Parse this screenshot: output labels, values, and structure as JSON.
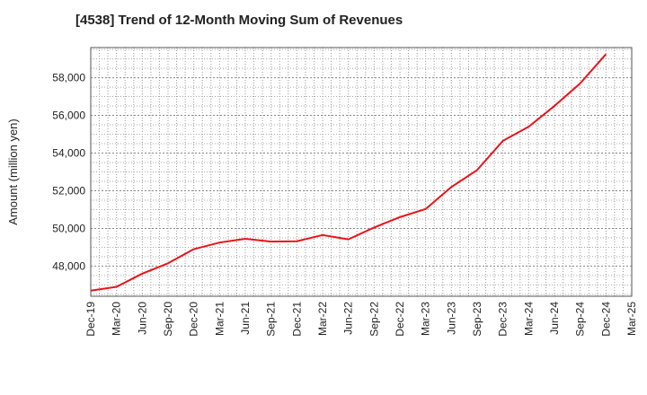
{
  "chart_data": {
    "type": "line",
    "title": "[4538]  Trend of 12-Month Moving Sum of Revenues",
    "ylabel": "Amount (million yen)",
    "xlabel": "",
    "x_ticks": [
      "Dec-19",
      "Mar-20",
      "Jun-20",
      "Sep-20",
      "Dec-20",
      "Mar-21",
      "Jun-21",
      "Sep-21",
      "Dec-21",
      "Mar-22",
      "Jun-22",
      "Sep-22",
      "Dec-22",
      "Mar-23",
      "Jun-23",
      "Sep-23",
      "Dec-23",
      "Mar-24",
      "Jun-24",
      "Sep-24",
      "Dec-24",
      "Mar-25"
    ],
    "y_ticks": [
      48000,
      50000,
      52000,
      54000,
      56000,
      58000
    ],
    "y_tick_labels": [
      "48,000",
      "50,000",
      "52,000",
      "54,000",
      "56,000",
      "58,000"
    ],
    "ylim": [
      46400,
      59600
    ],
    "grid": true,
    "line_color": "#e8141a",
    "series": [
      {
        "x": [
          "Dec-19",
          "Mar-20",
          "Jun-20",
          "Sep-20",
          "Dec-20",
          "Mar-21",
          "Jun-21",
          "Sep-21",
          "Dec-21",
          "Mar-22",
          "Jun-22",
          "Sep-22",
          "Dec-22",
          "Mar-23",
          "Jun-23",
          "Sep-23",
          "Dec-23",
          "Mar-24",
          "Jun-24",
          "Sep-24",
          "Dec-24"
        ],
        "values": [
          46700,
          46900,
          47600,
          48150,
          48900,
          49250,
          49450,
          49300,
          49320,
          49650,
          49420,
          50050,
          50600,
          51030,
          52200,
          53100,
          54650,
          55400,
          56500,
          57700,
          59250
        ]
      }
    ]
  }
}
